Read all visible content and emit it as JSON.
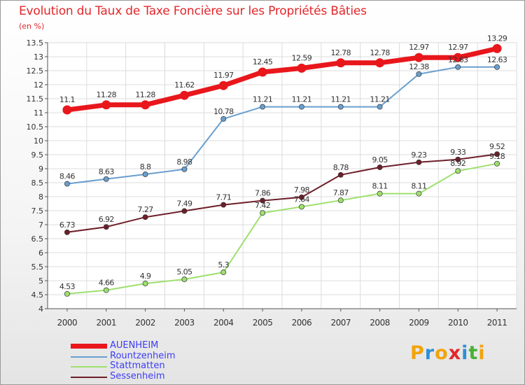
{
  "title": "Evolution du Taux de Taxe Foncière sur les Propriétés Bâties",
  "unit_label": "(en %)",
  "logo": {
    "letters": [
      "P",
      "r",
      "o",
      "x",
      "i",
      "t",
      "i"
    ],
    "colors": [
      "#f2a40b",
      "#2f8fd6",
      "#f2a40b",
      "#e3262a",
      "#2f8fd6",
      "#49b035",
      "#f2a40b"
    ]
  },
  "chart_data": {
    "type": "line",
    "title": "Evolution du Taux de Taxe Foncière sur les Propriétés Bâties",
    "ylabel": "(en %)",
    "x": [
      "2000",
      "2001",
      "2002",
      "2003",
      "2004",
      "2005",
      "2006",
      "2007",
      "2008",
      "2009",
      "2010",
      "2011"
    ],
    "ylim": [
      4,
      13.5
    ],
    "yticks": [
      "4",
      "4.5",
      "5",
      "5.5",
      "6",
      "6.5",
      "7",
      "7.5",
      "8",
      "8.5",
      "9",
      "9.5",
      "10",
      "10.5",
      "11",
      "11.5",
      "12",
      "12.5",
      "13",
      "13.5"
    ],
    "grid": true,
    "legend_position": "bottom-left",
    "series": [
      {
        "name": "AUENHEIM",
        "color": "#e8171c",
        "emphasis": true,
        "values": [
          11.1,
          11.28,
          11.28,
          11.62,
          11.97,
          12.45,
          12.59,
          12.78,
          12.78,
          12.97,
          12.97,
          13.29
        ],
        "labels": [
          "11.1",
          "11.28",
          "11.28",
          "11.62",
          "11.97",
          "12.45",
          "12.59",
          "12.78",
          "12.78",
          "12.97",
          "12.97",
          "13.29"
        ]
      },
      {
        "name": "Rountzenheim",
        "color": "#6a9fd0",
        "values": [
          8.46,
          8.63,
          8.8,
          8.98,
          10.78,
          11.21,
          11.21,
          11.21,
          11.21,
          12.38,
          12.63,
          12.63
        ],
        "labels": [
          "8.46",
          "8.63",
          "8.8",
          "8.98",
          "10.78",
          "11.21",
          "11.21",
          "11.21",
          "11.21",
          "12.38",
          "12.63",
          "12.63"
        ]
      },
      {
        "name": "Stattmatten",
        "color": "#9ee06e",
        "values": [
          4.53,
          4.66,
          4.9,
          5.05,
          5.3,
          7.42,
          7.64,
          7.87,
          8.11,
          8.11,
          8.92,
          9.18
        ],
        "labels": [
          "4.53",
          "4.66",
          "4.9",
          "5.05",
          "5.3",
          "7.42",
          "7.64",
          "7.87",
          "8.11",
          "8.11",
          "8.92",
          "9.18"
        ]
      },
      {
        "name": "Sessenheim",
        "color": "#6e1f2a",
        "values": [
          6.73,
          6.92,
          7.27,
          7.49,
          7.71,
          7.86,
          7.98,
          8.78,
          9.05,
          9.23,
          9.33,
          9.52
        ],
        "labels": [
          "6.73",
          "6.92",
          "7.27",
          "7.49",
          "7.71",
          "7.86",
          "7.98",
          "8.78",
          "9.05",
          "9.23",
          "9.33",
          "9.52"
        ]
      }
    ]
  }
}
